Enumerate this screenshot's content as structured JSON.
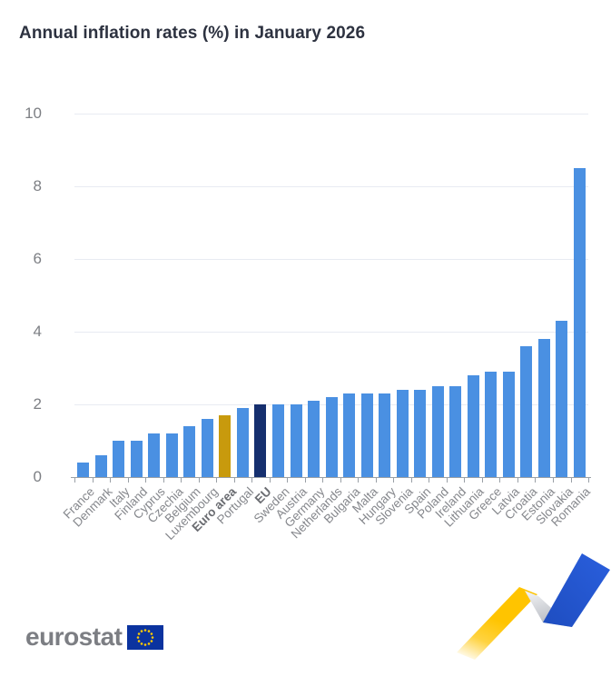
{
  "page": {
    "background": "#ffffff"
  },
  "chart_data": {
    "type": "bar",
    "title": "Annual inflation rates (%) in January 2026",
    "xlabel": "",
    "ylabel": "",
    "ylim": [
      0,
      10
    ],
    "yticks": [
      0,
      2,
      4,
      6,
      8,
      10
    ],
    "grid": "horizontal",
    "legend": "none",
    "categories": [
      "France",
      "Denmark",
      "Italy",
      "Finland",
      "Cyprus",
      "Czechia",
      "Belgium",
      "Luxembourg",
      "Euro area",
      "Portugal",
      "EU",
      "Sweden",
      "Austria",
      "Germany",
      "Netherlands",
      "Bulgaria",
      "Malta",
      "Hungary",
      "Slovenia",
      "Spain",
      "Poland",
      "Ireland",
      "Lithuania",
      "Greece",
      "Latvia",
      "Croatia",
      "Estonia",
      "Slovakia",
      "Romania"
    ],
    "values": [
      0.4,
      0.6,
      1.0,
      1.0,
      1.2,
      1.2,
      1.4,
      1.6,
      1.7,
      1.9,
      2.0,
      2.0,
      2.0,
      2.1,
      2.2,
      2.3,
      2.3,
      2.3,
      2.4,
      2.4,
      2.5,
      2.5,
      2.8,
      2.9,
      2.9,
      3.6,
      3.8,
      4.3,
      8.5
    ],
    "highlighted_bars": {
      "Euro area": "euro-area",
      "EU": "eu"
    },
    "bold_x_labels": [
      "Euro area",
      "EU"
    ]
  },
  "colors": {
    "bar_default": "#4a90e2",
    "bar_euro_area": "#c89a0d",
    "bar_eu": "#152f6e",
    "gridline": "#e8ebf2",
    "axis": "#9aa0a6",
    "y_tick_label": "#7d7f84",
    "x_tick_label": "#85878c",
    "x_tick_label_bold": "#6a6c71",
    "title": "#2d3240",
    "logo_text": "#7c7e83",
    "flag_blue": "#0b339f",
    "flag_stars": "#ffcc00",
    "ribbon_yellow": "#ffc400",
    "ribbon_gray": "#b7bac1",
    "ribbon_blue": "#2456cd"
  },
  "branding": {
    "logo_text": "eurostat",
    "flag_icon": "eu-flag"
  }
}
